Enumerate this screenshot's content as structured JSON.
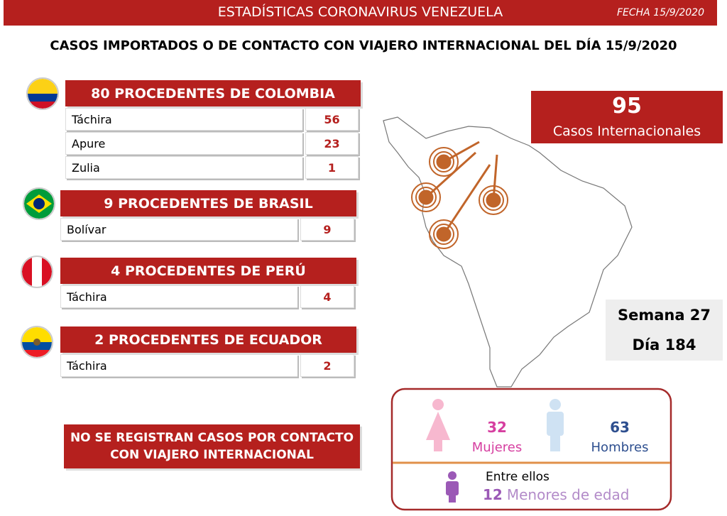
{
  "header": {
    "title": "ESTADÍSTICAS CORONAVIRUS VENEZUELA",
    "date": "FECHA 15/9/2020"
  },
  "subtitle": "CASOS IMPORTADOS O DE CONTACTO CON VIAJERO INTERNACIONAL DEL DÍA  15/9/2020",
  "groups": [
    {
      "title": "80 PROCEDENTES DE COLOMBIA",
      "rows": [
        [
          "Táchira",
          56
        ],
        [
          "Apure",
          23
        ],
        [
          "Zulia",
          1
        ]
      ]
    },
    {
      "title": "9 PROCEDENTES DE BRASIL",
      "rows": [
        [
          "Bolívar",
          9
        ]
      ]
    },
    {
      "title": "4 PROCEDENTES DE PERÚ",
      "rows": [
        [
          "Táchira",
          4
        ]
      ]
    },
    {
      "title": "2 PROCEDENTES DE ECUADOR",
      "rows": [
        [
          "Táchira",
          2
        ]
      ]
    }
  ],
  "note": "NO SE REGISTRAN CASOS POR CONTACTO CON VIAJERO INTERNACIONAL",
  "total": {
    "value": 95,
    "label": "Casos Internacionales"
  },
  "week": {
    "week": "Semana 27",
    "day": "Día 184"
  },
  "gender": {
    "women": {
      "value": 32,
      "label": "Mujeres"
    },
    "men": {
      "value": 63,
      "label": "Hombres"
    },
    "among": "Entre ellos",
    "minors": {
      "value": 12,
      "label": "Menores de edad"
    }
  }
}
